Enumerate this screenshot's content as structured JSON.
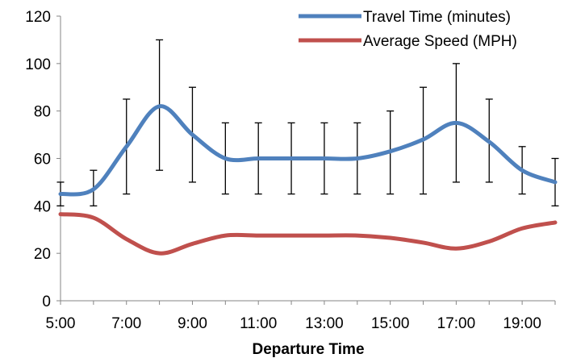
{
  "chart_data": {
    "type": "line",
    "title": "",
    "xlabel": "Departure Time",
    "ylabel": "",
    "ylim": [
      0,
      120
    ],
    "yticks": [
      0,
      20,
      40,
      60,
      80,
      100,
      120
    ],
    "x": [
      "5:00",
      "6:00",
      "7:00",
      "8:00",
      "9:00",
      "10:00",
      "11:00",
      "12:00",
      "13:00",
      "14:00",
      "15:00",
      "16:00",
      "17:00",
      "18:00",
      "19:00",
      "20:00"
    ],
    "xtick_labels": [
      "5:00",
      "7:00",
      "9:00",
      "11:00",
      "13:00",
      "15:00",
      "17:00",
      "19:00"
    ],
    "smooth": true,
    "grid": false,
    "legend_position": "top-right",
    "series": [
      {
        "name": "Travel Time (minutes)",
        "color": "#4f81bd",
        "values": [
          45,
          47,
          65,
          82,
          70,
          60,
          60,
          60,
          60,
          60,
          63,
          68,
          75,
          67,
          55,
          50
        ],
        "error_bars": {
          "lower": [
            40,
            40,
            45,
            55,
            50,
            45,
            45,
            45,
            45,
            45,
            45,
            45,
            50,
            50,
            45,
            40
          ],
          "upper": [
            50,
            55,
            85,
            110,
            90,
            75,
            75,
            75,
            75,
            75,
            80,
            90,
            100,
            85,
            65,
            60
          ]
        }
      },
      {
        "name": "Average Speed (MPH)",
        "color": "#c0504d",
        "values": [
          36.5,
          35,
          26,
          20,
          24,
          27.5,
          27.5,
          27.5,
          27.5,
          27.5,
          26.5,
          24.5,
          22,
          25,
          30.5,
          33
        ]
      }
    ]
  }
}
